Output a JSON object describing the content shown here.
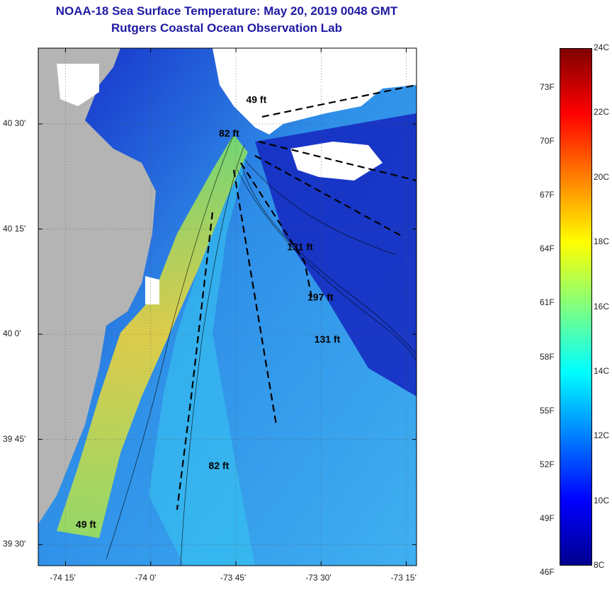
{
  "title": {
    "line1": "NOAA-18 Sea Surface Temperature:  May 20, 2019 0048 GMT",
    "line2": "Rutgers Coastal Ocean Observation Lab"
  },
  "map": {
    "lon_range": [
      -74.33,
      -73.22
    ],
    "lat_range": [
      39.45,
      40.68
    ],
    "lon_ticks": [
      {
        "value": -74.25,
        "label": "-74 15'"
      },
      {
        "value": -74.0,
        "label": "-74 0'"
      },
      {
        "value": -73.75,
        "label": "-73 45'"
      },
      {
        "value": -73.5,
        "label": "-73 30'"
      },
      {
        "value": -73.25,
        "label": "-73 15'"
      }
    ],
    "lat_ticks": [
      {
        "value": 40.5,
        "label": "40 30'"
      },
      {
        "value": 40.25,
        "label": "40 15'"
      },
      {
        "value": 40.0,
        "label": "40 0'"
      },
      {
        "value": 39.75,
        "label": "39 45'"
      },
      {
        "value": 39.5,
        "label": "39 30'"
      }
    ],
    "depth_labels": [
      {
        "text": "49 ft",
        "lon": -73.72,
        "lat": 40.55
      },
      {
        "text": "82 ft",
        "lon": -73.8,
        "lat": 40.47
      },
      {
        "text": "131 ft",
        "lon": -73.6,
        "lat": 40.2
      },
      {
        "text": "197 ft",
        "lon": -73.54,
        "lat": 40.08
      },
      {
        "text": "131 ft",
        "lon": -73.52,
        "lat": 39.98
      },
      {
        "text": "82 ft",
        "lon": -73.83,
        "lat": 39.68
      },
      {
        "text": "49 ft",
        "lon": -74.22,
        "lat": 39.54
      }
    ],
    "colors": {
      "land": "#b4b4b4",
      "cloud": "#ffffff",
      "cold": "#1e2fd8",
      "warm": "#f5d21e"
    }
  },
  "colorbar": {
    "colors": [
      "#00008f",
      "#0000ff",
      "#0080ff",
      "#00ffff",
      "#80ff80",
      "#ffff00",
      "#ff8000",
      "#ff0000",
      "#800000"
    ],
    "celsius_labels": [
      {
        "value": 24,
        "label": "24C"
      },
      {
        "value": 22,
        "label": "22C"
      },
      {
        "value": 20,
        "label": "20C"
      },
      {
        "value": 18,
        "label": "18C"
      },
      {
        "value": 16,
        "label": "16C"
      },
      {
        "value": 14,
        "label": "14C"
      },
      {
        "value": 12,
        "label": "12C"
      },
      {
        "value": 10,
        "label": "10C"
      },
      {
        "value": 8,
        "label": "8C"
      }
    ],
    "fahrenheit_labels": [
      {
        "value": 73,
        "label": "73F"
      },
      {
        "value": 70,
        "label": "70F"
      },
      {
        "value": 67,
        "label": "67F"
      },
      {
        "value": 64,
        "label": "64F"
      },
      {
        "value": 61,
        "label": "61F"
      },
      {
        "value": 58,
        "label": "58F"
      },
      {
        "value": 55,
        "label": "55F"
      },
      {
        "value": 52,
        "label": "52F"
      },
      {
        "value": 49,
        "label": "49F"
      },
      {
        "value": 46,
        "label": "46F"
      }
    ],
    "c_range": [
      8,
      24
    ]
  }
}
